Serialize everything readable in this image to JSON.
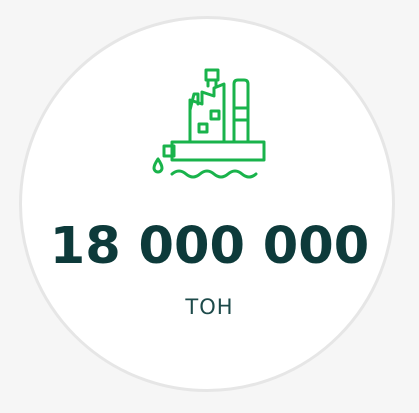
{
  "stat": {
    "value": "18 000 000",
    "unit": "ТОН"
  },
  "icon": {
    "name": "oil-platform-icon"
  },
  "colors": {
    "accent": "#19b34b",
    "value_text": "#0d3a3a",
    "unit_text": "#1d4a4a",
    "card_bg": "#ffffff",
    "card_border": "#e6e6e6",
    "page_bg": "#f6f6f6"
  }
}
